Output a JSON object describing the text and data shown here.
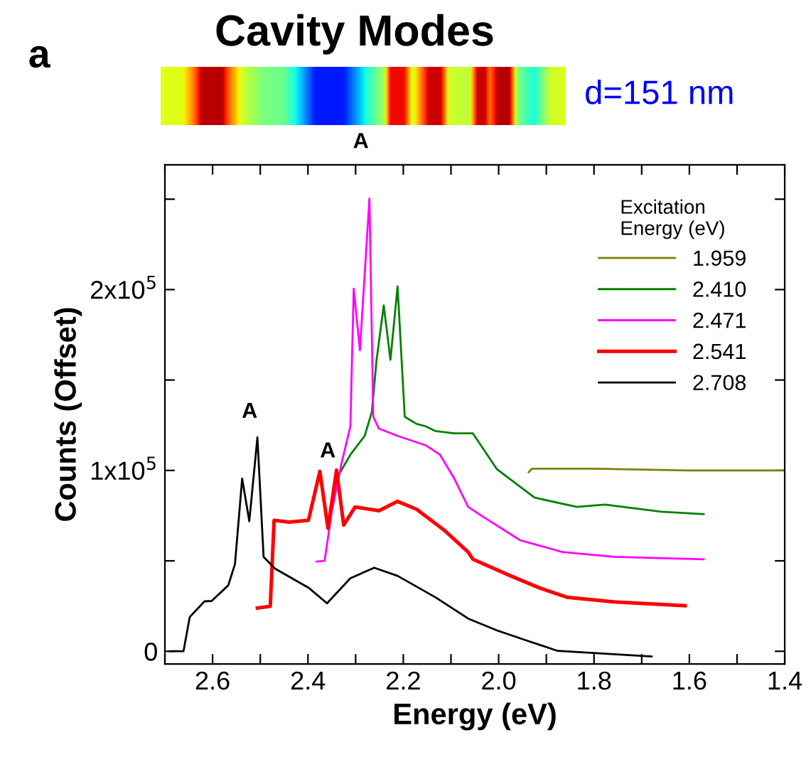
{
  "chart_data": {
    "type": "line",
    "title": "Cavity Modes",
    "xlabel": "Energy (eV)",
    "ylabel": "Counts (Offset)",
    "legend_title": "Excitation\nEnergy (eV)",
    "legend": "top right",
    "grid": false,
    "marker": "none",
    "line_style": "solid",
    "xlim": [
      2.7,
      1.4
    ],
    "xticks": [
      {
        "value": 2.7,
        "label": null
      },
      2.6,
      {
        "value": 2.5,
        "label": null
      },
      2.4,
      {
        "value": 2.3,
        "label": null
      },
      2.2,
      {
        "value": 2.1,
        "label": null
      },
      {
        "value": 2.0,
        "label": "2.0"
      },
      {
        "value": 1.9,
        "label": null
      },
      1.8,
      {
        "value": 1.7,
        "label": null
      },
      1.6,
      {
        "value": 1.5,
        "label": null
      },
      1.4
    ],
    "ylim": [
      -7000,
      269000
    ],
    "yticks": [
      0,
      {
        "value": 50000,
        "label": null
      },
      {
        "value": 100000,
        "label": "1x10$^{5}$"
      },
      {
        "value": 150000,
        "label": null
      },
      {
        "value": 200000,
        "label": "2x10$^{5}$"
      },
      {
        "value": 250000,
        "label": null
      }
    ],
    "series": [
      {
        "name": "1.959",
        "color": "#808000",
        "x": [
          1.937,
          1.93,
          1.8,
          1.6,
          1.4
        ],
        "values": [
          99000,
          101000,
          101000,
          100000,
          100000
        ]
      },
      {
        "name": "2.410",
        "color": "#008000",
        "x": [
          2.34,
          2.311,
          2.281,
          2.266,
          2.256,
          2.241,
          2.227,
          2.212,
          2.197,
          2.172,
          2.153,
          2.133,
          2.093,
          2.054,
          2.004,
          1.925,
          1.836,
          1.777,
          1.659,
          1.57
        ],
        "values": [
          95500,
          108700,
          119100,
          132300,
          161200,
          191300,
          161200,
          201800,
          129700,
          125700,
          124400,
          121800,
          120500,
          120500,
          100800,
          85000,
          79800,
          81100,
          77200,
          75800
        ]
      },
      {
        "name": "2.471",
        "color": "#ff00ff",
        "x": [
          2.382,
          2.365,
          2.35,
          2.33,
          2.311,
          2.304,
          2.291,
          2.271,
          2.263,
          2.251,
          2.212,
          2.153,
          2.123,
          2.093,
          2.064,
          2.034,
          1.955,
          1.866,
          1.758,
          1.57
        ],
        "values": [
          49600,
          50100,
          77200,
          103400,
          124400,
          200500,
          166400,
          250400,
          129700,
          123100,
          119100,
          113900,
          108700,
          95500,
          79800,
          74600,
          61400,
          54900,
          52200,
          50900
        ]
      },
      {
        "name": "2.541",
        "color": "#ff0000",
        "x": [
          2.506,
          2.479,
          2.471,
          2.439,
          2.399,
          2.375,
          2.358,
          2.34,
          2.325,
          2.301,
          2.251,
          2.212,
          2.172,
          2.113,
          2.064,
          2.054,
          1.975,
          1.916,
          1.857,
          1.758,
          1.609
        ],
        "values": [
          23900,
          24900,
          72400,
          71400,
          72400,
          99500,
          68000,
          100200,
          69800,
          79800,
          77700,
          82900,
          78500,
          66700,
          54900,
          50900,
          41700,
          35200,
          29900,
          27300,
          25200
        ]
      },
      {
        "name": "2.708",
        "color": "#000000",
        "x": [
          2.69,
          2.661,
          2.648,
          2.617,
          2.602,
          2.567,
          2.553,
          2.538,
          2.523,
          2.506,
          2.493,
          2.469,
          2.399,
          2.36,
          2.311,
          2.261,
          2.212,
          2.133,
          2.064,
          2.004,
          1.945,
          1.876,
          1.679
        ],
        "values": [
          0,
          0,
          18900,
          27600,
          27800,
          36500,
          48300,
          95500,
          71900,
          118300,
          52200,
          45700,
          35200,
          26500,
          40400,
          46200,
          41700,
          29900,
          18100,
          11600,
          6300,
          200,
          -2900
        ]
      }
    ],
    "annotations": [
      "a",
      "d=151 nm",
      "A",
      "A",
      "A"
    ]
  }
}
